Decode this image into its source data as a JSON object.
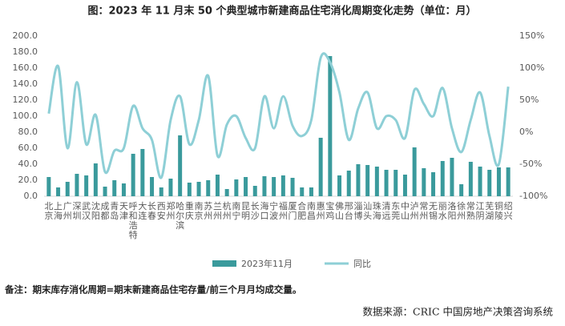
{
  "chart_data": {
    "type": "bar_line",
    "title": "图：2023 年 11 月末 50 个典型城市新建商品住宅消化周期变化走势（单位：月）",
    "note": "备注：期末库存消化周期=期末新建商品住宅存量/前三个月月均成交量。",
    "source": "数据来源：CRIC 中国房地产决策咨询系统",
    "categories": [
      "北京",
      "上海",
      "广州",
      "深圳",
      "武汉",
      "沈阳",
      "成都",
      "青岛",
      "天津",
      "呼和浩特",
      "大连",
      "长春",
      "西安",
      "郑州",
      "哈尔滨",
      "重庆",
      "南京",
      "苏州",
      "兰州",
      "杭州",
      "南宁",
      "昆明",
      "长沙",
      "海口",
      "宁波",
      "福州",
      "厦门",
      "合肥",
      "南昌",
      "惠州",
      "宝鸡",
      "佛山",
      "邢台",
      "淄博",
      "汕头",
      "珠海",
      "清远",
      "东莞",
      "中山",
      "泸州",
      "常州",
      "无锡",
      "丽水",
      "洛阳",
      "徐州",
      "常熟",
      "江阴",
      "芜湖",
      "铜陵",
      "绍兴"
    ],
    "series": [
      {
        "name": "2023年11月",
        "color": "#3a9a9c",
        "kind": "bar",
        "values": [
          24,
          11,
          18,
          28,
          26,
          41,
          12,
          20,
          16,
          53,
          59,
          24,
          11,
          22,
          76,
          17,
          18,
          20,
          27,
          9,
          21,
          24,
          13,
          25,
          24,
          26,
          23,
          11,
          11,
          73,
          175,
          26,
          32,
          40,
          39,
          37,
          33,
          33,
          27,
          61,
          35,
          30,
          44,
          48,
          15,
          43,
          37,
          33,
          36,
          36
        ]
      },
      {
        "name": "同比",
        "color": "#8ecfd6",
        "kind": "line",
        "axis": "y2",
        "values": [
          29,
          103,
          -25,
          78,
          -19,
          27,
          -62,
          -29,
          -25,
          41,
          6,
          -12,
          -71,
          19,
          56,
          -19,
          19,
          88,
          -37,
          12,
          25,
          -9,
          -25,
          56,
          6,
          56,
          10,
          -6,
          19,
          116,
          109,
          62,
          -12,
          37,
          62,
          6,
          25,
          19,
          -9,
          66,
          44,
          25,
          69,
          6,
          -31,
          19,
          62,
          -6,
          -50,
          71
        ]
      }
    ],
    "ylim": [
      0,
      200
    ],
    "yticks": [
      {
        "value": 0,
        "label": "0.0"
      },
      {
        "value": 20,
        "label": "20.0"
      },
      {
        "value": 40,
        "label": "40.0"
      },
      {
        "value": 60,
        "label": "60.0"
      },
      {
        "value": 80,
        "label": "80.0"
      },
      {
        "value": 100,
        "label": "100.0"
      },
      {
        "value": 120,
        "label": "120.0"
      },
      {
        "value": 140,
        "label": "140.0"
      },
      {
        "value": 160,
        "label": "160.0"
      },
      {
        "value": 180,
        "label": "180.0"
      },
      {
        "value": 200,
        "label": "200.0"
      }
    ],
    "y2lim": [
      -100,
      150
    ],
    "y2ticks": [
      {
        "value": -100,
        "label": "-100%"
      },
      {
        "value": -50,
        "label": "-50%"
      },
      {
        "value": 0,
        "label": "0%"
      },
      {
        "value": 50,
        "label": "50%"
      },
      {
        "value": 100,
        "label": "100%"
      },
      {
        "value": 150,
        "label": "150%"
      }
    ],
    "legend": "bottom"
  }
}
